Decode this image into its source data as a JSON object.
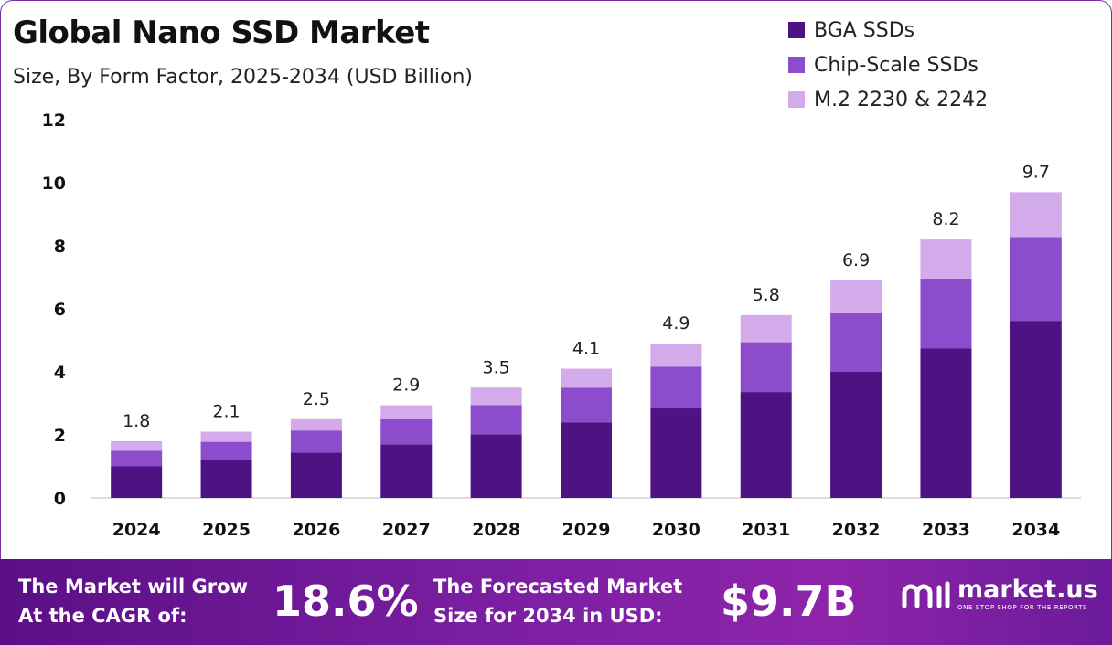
{
  "header": {
    "title": "Global Nano SSD Market",
    "subtitle": "Size, By Form Factor, 2025-2034 (USD Billion)"
  },
  "legend": [
    {
      "label": "BGA SSDs",
      "color": "#4e1283"
    },
    {
      "label": "Chip-Scale SSDs",
      "color": "#8d4ccc"
    },
    {
      "label": "M.2 2230 & 2242",
      "color": "#d3aaea"
    }
  ],
  "chart_data": {
    "type": "bar",
    "stacked": true,
    "title": "Global Nano SSD Market",
    "subtitle": "Size, By Form Factor, 2025-2034 (USD Billion)",
    "categories": [
      "2024",
      "2025",
      "2026",
      "2027",
      "2028",
      "2029",
      "2030",
      "2031",
      "2032",
      "2033",
      "2034"
    ],
    "series": [
      {
        "name": "BGA SSDs",
        "color": "#4e1283",
        "values": [
          1.0,
          1.2,
          1.44,
          1.7,
          2.02,
          2.4,
          2.84,
          3.36,
          4.0,
          4.74,
          5.62
        ]
      },
      {
        "name": "Chip-Scale SSDs",
        "color": "#8d4ccc",
        "values": [
          0.5,
          0.58,
          0.7,
          0.8,
          0.93,
          1.1,
          1.32,
          1.58,
          1.86,
          2.22,
          2.66
        ]
      },
      {
        "name": "M.2 2230 & 2242",
        "color": "#d3aaea",
        "values": [
          0.3,
          0.32,
          0.36,
          0.44,
          0.55,
          0.6,
          0.74,
          0.86,
          1.04,
          1.24,
          1.42
        ]
      }
    ],
    "totals": [
      "1.8",
      "2.1",
      "2.5",
      "2.9",
      "3.5",
      "4.1",
      "4.9",
      "5.8",
      "6.9",
      "8.2",
      "9.7"
    ],
    "yticks": [
      0,
      2,
      4,
      6,
      8,
      10,
      12
    ],
    "ylim": [
      0,
      12
    ],
    "xlabel": "",
    "ylabel": "",
    "grid": false,
    "legend_position": "top-right"
  },
  "footer": {
    "cagr_label_line1": "The Market will Grow",
    "cagr_label_line2": "At the CAGR of:",
    "cagr_value": "18.6%",
    "forecast_label_line1": "The Forecasted Market",
    "forecast_label_line2": "Size for 2034 in USD:",
    "forecast_value": "$9.7B",
    "logo_name": "market.us",
    "logo_tagline": "ONE STOP SHOP FOR THE REPORTS",
    "logo_icon": "market-us-logo-icon"
  }
}
